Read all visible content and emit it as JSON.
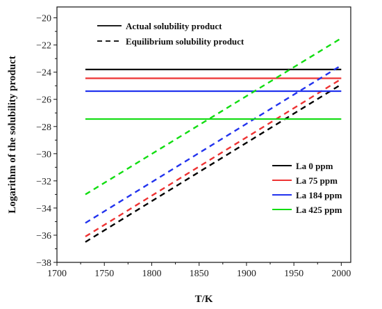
{
  "chart_data": {
    "type": "line",
    "xlabel": "T/K",
    "ylabel": "Logarithm of the solubility product",
    "xlim": [
      1700,
      2010
    ],
    "ylim": [
      -38,
      -19.2
    ],
    "xticks": [
      1700,
      1750,
      1800,
      1850,
      1900,
      1950,
      2000
    ],
    "yticks": [
      -38,
      -36,
      -34,
      -32,
      -30,
      -28,
      -26,
      -24,
      -22,
      -20
    ],
    "grid": false,
    "style_legend": [
      {
        "label": "Actual solubility product",
        "dash": "solid"
      },
      {
        "label": "Equilibrium solubility product",
        "dash": "dashed"
      }
    ],
    "series": [
      {
        "name": "La 0 ppm",
        "color": "#000000",
        "actual": -23.8,
        "equilibrium": {
          "x": [
            1730,
            2000
          ],
          "y": [
            -36.5,
            -24.9
          ]
        }
      },
      {
        "name": "La 75 ppm",
        "color": "#ee3333",
        "actual": -24.45,
        "equilibrium": {
          "x": [
            1730,
            2000
          ],
          "y": [
            -36.1,
            -24.5
          ]
        }
      },
      {
        "name": "La 184 ppm",
        "color": "#2233ee",
        "actual": -25.4,
        "equilibrium": {
          "x": [
            1730,
            2000
          ],
          "y": [
            -35.1,
            -23.5
          ]
        }
      },
      {
        "name": "La 425 ppm",
        "color": "#11dd11",
        "actual": -27.45,
        "equilibrium": {
          "x": [
            1730,
            2000
          ],
          "y": [
            -33.0,
            -21.5
          ]
        }
      }
    ],
    "actual_x_range": [
      1730,
      2000
    ],
    "legend_placement": "right"
  }
}
